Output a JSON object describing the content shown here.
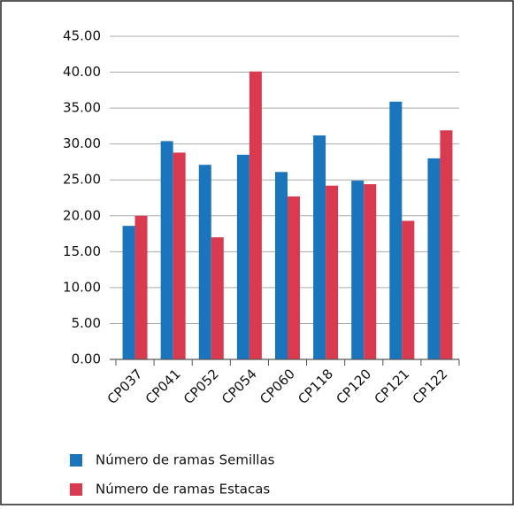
{
  "chart_data": {
    "type": "bar",
    "categories": [
      "CP037",
      "CP041",
      "CP052",
      "CP054",
      "CP060",
      "CP118",
      "CP120",
      "CP121",
      "CP122"
    ],
    "series": [
      {
        "name": "Número de ramas Semillas",
        "color": "#1b75bc",
        "values": [
          18.6,
          30.4,
          27.1,
          28.5,
          26.1,
          31.2,
          24.9,
          35.9,
          28.0
        ]
      },
      {
        "name": "Número de ramas Estacas",
        "color": "#d93a4f",
        "values": [
          20.0,
          28.8,
          17.0,
          40.1,
          22.7,
          24.2,
          24.4,
          19.3,
          31.9
        ]
      }
    ],
    "ylim": [
      0,
      45
    ],
    "yticks": [
      {
        "value": 0,
        "label": "0.00"
      },
      {
        "value": 5,
        "label": "5.00"
      },
      {
        "value": 10,
        "label": "10.00"
      },
      {
        "value": 15,
        "label": "15.00"
      },
      {
        "value": 20,
        "label": "20.00"
      },
      {
        "value": 25,
        "label": "25.00"
      },
      {
        "value": 30,
        "label": "30.00"
      },
      {
        "value": 35,
        "label": "35.00"
      },
      {
        "value": 40,
        "label": "40.00"
      },
      {
        "value": 45,
        "label": "45.00"
      }
    ],
    "grid": true,
    "legend": "bottom"
  }
}
